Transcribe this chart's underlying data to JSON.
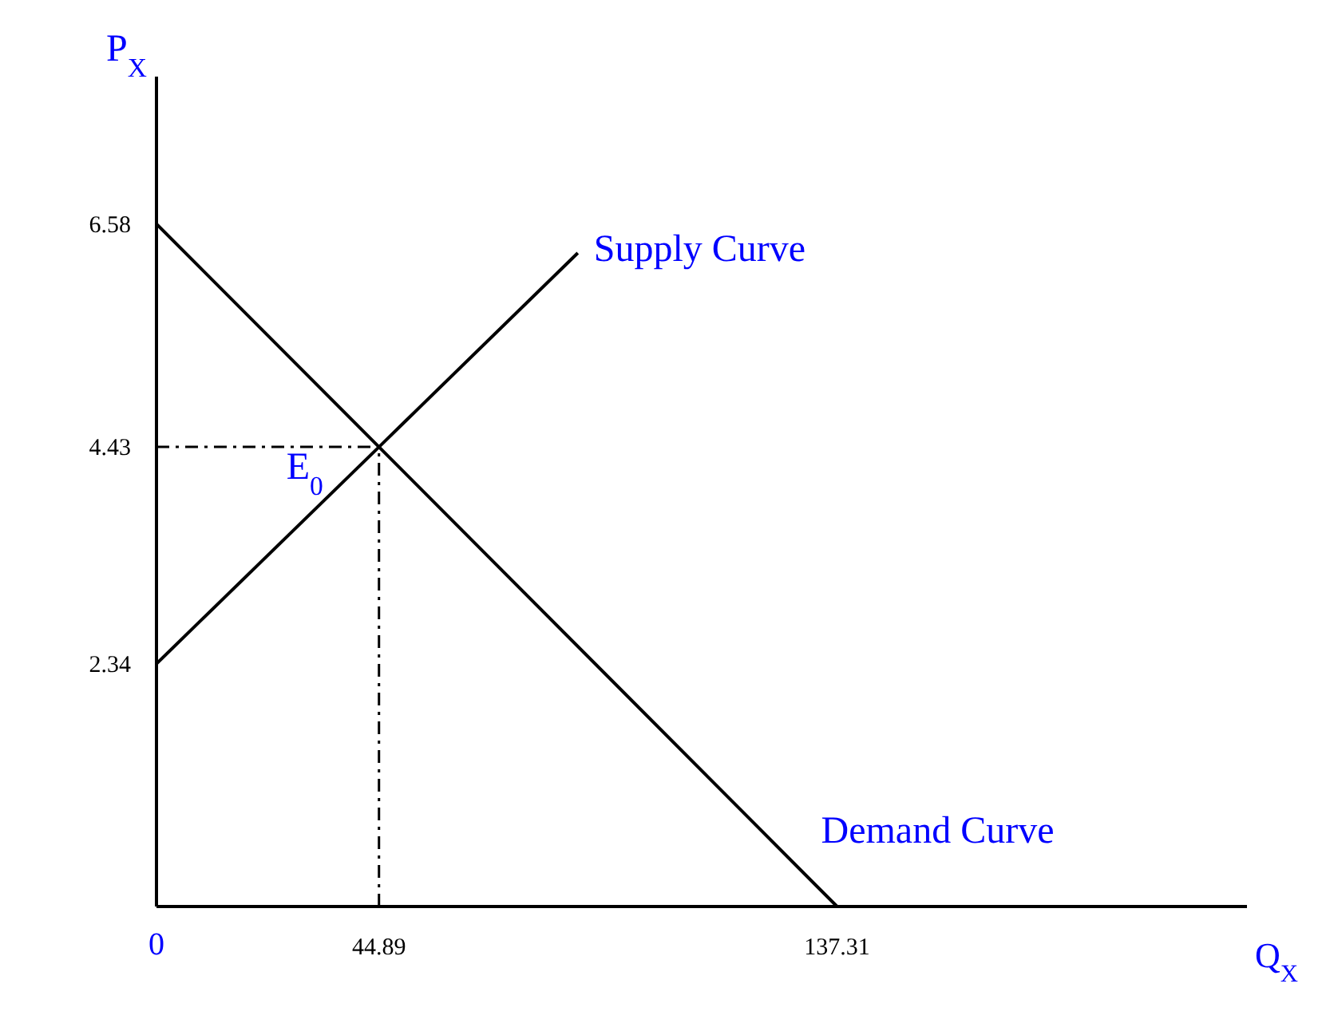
{
  "chart_data": {
    "type": "line",
    "xlabel": "Q$_{X}$",
    "ylabel": "P$_{X}$",
    "series": [
      {
        "name": "Supply Curve",
        "color": "#000000",
        "x": [
          0,
          44.89,
          85
        ],
        "values": [
          2.34,
          4.43,
          6.3
        ]
      },
      {
        "name": "Demand Curve",
        "color": "#000000",
        "x": [
          0,
          44.89,
          137.31
        ],
        "values": [
          6.58,
          4.43,
          0
        ]
      }
    ],
    "xlim": [
      0,
      220
    ],
    "ylim": [
      0,
      8
    ],
    "xticks": [
      0,
      44.89,
      137.31
    ],
    "yticks": [
      2.34,
      4.43,
      6.58
    ],
    "ref_lines": [
      {
        "axis": "y",
        "value": 4.43,
        "line_style": "dashed",
        "color": "#000000"
      },
      {
        "axis": "x",
        "value": 44.89,
        "line_style": "dashed",
        "color": "#000000"
      }
    ],
    "annotations": [
      {
        "text": "E$_{0}$",
        "x": 44.89,
        "y": 4.43
      }
    ],
    "grid": false,
    "legend": false,
    "marker": "none",
    "line_style": "solid"
  }
}
